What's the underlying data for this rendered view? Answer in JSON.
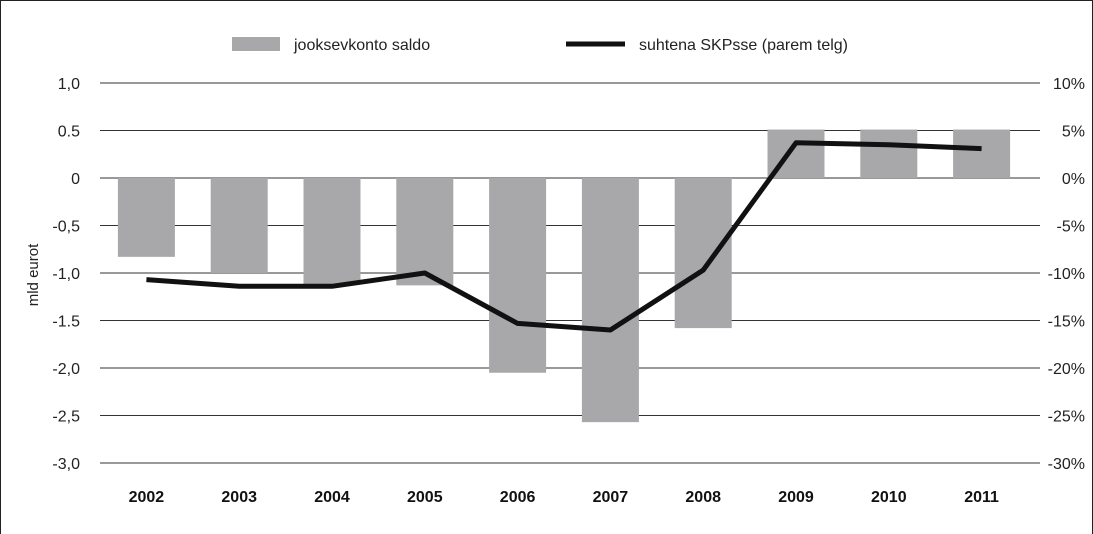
{
  "chart_data": {
    "type": "bar",
    "categories": [
      "2002",
      "2003",
      "2004",
      "2005",
      "2006",
      "2007",
      "2008",
      "2009",
      "2010",
      "2011"
    ],
    "series": [
      {
        "name": "jooksevkonto saldo",
        "type": "bar",
        "axis": "left",
        "color": "#a8a8aa",
        "values": [
          -0.83,
          -1.0,
          -1.12,
          -1.13,
          -2.05,
          -2.57,
          -1.58,
          0.51,
          0.51,
          0.51
        ]
      },
      {
        "name": "suhtena SKPsse (parem telg)",
        "type": "line",
        "axis": "right",
        "color": "#111111",
        "values": [
          -10.7,
          -11.4,
          -11.4,
          -10.0,
          -15.3,
          -16.0,
          -9.7,
          3.7,
          3.5,
          3.1
        ]
      }
    ],
    "ylabel": "mld eurot",
    "ylim": [
      -3.0,
      1.0
    ],
    "yticks": [
      "1,0",
      "0.5",
      "0",
      "-0,5",
      "-1,0",
      "-1.5",
      "-2,0",
      "-2,5",
      "-3,0"
    ],
    "y2lim": [
      -30,
      10
    ],
    "y2ticks": [
      "10%",
      "5%",
      "0%",
      "-5%",
      "-10%",
      "-15%",
      "-20%",
      "-25%",
      "-30%"
    ],
    "grid": true,
    "legend_position": "top"
  }
}
